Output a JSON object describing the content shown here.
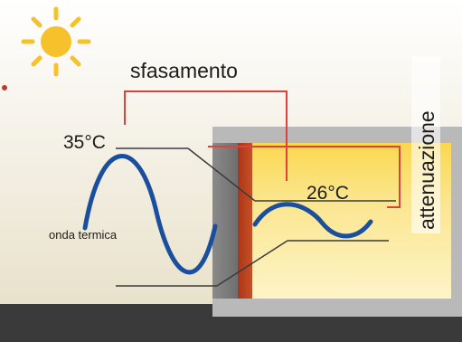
{
  "labels": {
    "phase_shift": "sfasamento",
    "attenuation": "attenuazione",
    "outdoor_peak_temp": "35°C",
    "indoor_peak_temp": "26°C",
    "thermal_wave": "onda termica"
  },
  "icons": {
    "sun": "sun-icon"
  },
  "colors": {
    "sky_top": "#ffffff",
    "sky_bottom": "#e9e2c9",
    "ground": "#3a3a3a",
    "wall_grey": "#7d7d7d",
    "wall_red": "#b8411f",
    "room_fill": "#f9e68a",
    "wave_blue": "#1a4f9e",
    "marker_red": "#e0413a",
    "sun_yellow": "#f6c22c"
  }
}
